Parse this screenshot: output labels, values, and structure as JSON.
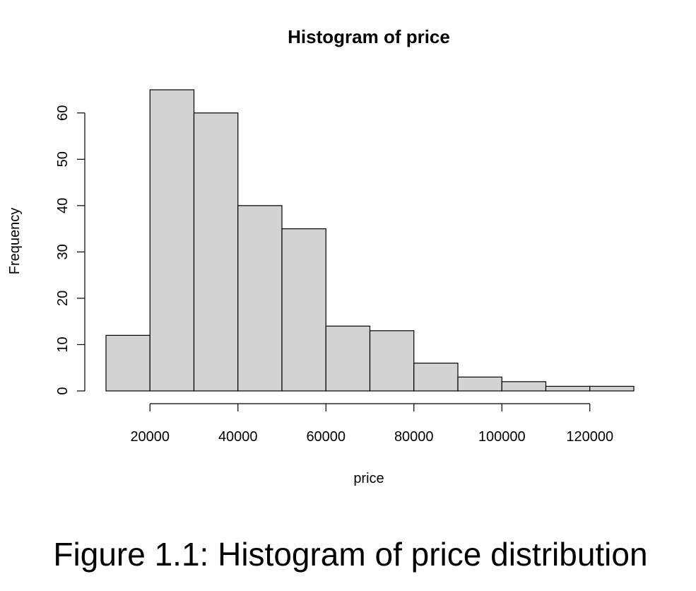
{
  "chart_data": {
    "type": "bar",
    "subtype": "histogram",
    "title": "Histogram of price",
    "xlabel": "price",
    "ylabel": "Frequency",
    "bins": [
      {
        "from": 10000,
        "to": 20000,
        "count": 12
      },
      {
        "from": 20000,
        "to": 30000,
        "count": 65
      },
      {
        "from": 30000,
        "to": 40000,
        "count": 60
      },
      {
        "from": 40000,
        "to": 50000,
        "count": 40
      },
      {
        "from": 50000,
        "to": 60000,
        "count": 35
      },
      {
        "from": 60000,
        "to": 70000,
        "count": 14
      },
      {
        "from": 70000,
        "to": 80000,
        "count": 13
      },
      {
        "from": 80000,
        "to": 90000,
        "count": 6
      },
      {
        "from": 90000,
        "to": 100000,
        "count": 3
      },
      {
        "from": 100000,
        "to": 110000,
        "count": 2
      },
      {
        "from": 110000,
        "to": 120000,
        "count": 1
      },
      {
        "from": 120000,
        "to": 130000,
        "count": 1
      }
    ],
    "xlim": [
      10000,
      130000
    ],
    "ylim": [
      0,
      65
    ],
    "x_ticks": [
      20000,
      40000,
      60000,
      80000,
      100000,
      120000
    ],
    "x_tick_labels": [
      "20000",
      "40000",
      "60000",
      "80000",
      "100000",
      "120000"
    ],
    "y_ticks": [
      0,
      10,
      20,
      30,
      40,
      50,
      60
    ],
    "y_tick_labels": [
      "0",
      "10",
      "20",
      "30",
      "40",
      "50",
      "60"
    ],
    "grid": false,
    "bar_color": "#d3d3d3"
  },
  "caption": "Figure 1.1: Histogram of price distribution"
}
